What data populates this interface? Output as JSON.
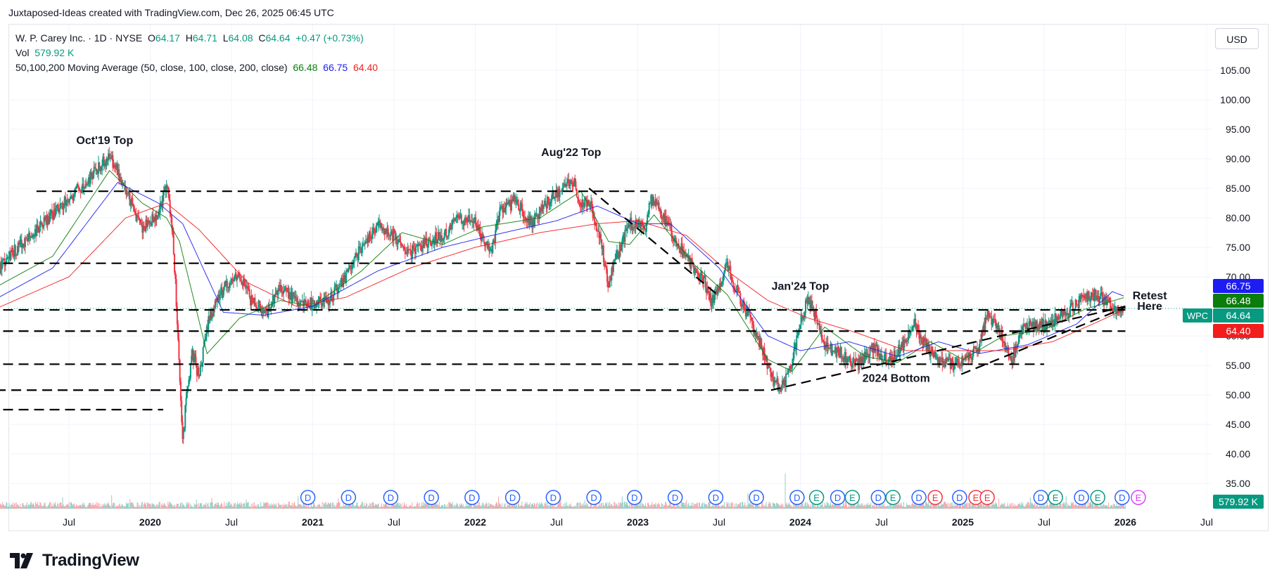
{
  "header": {
    "credit": "Juxtaposed-Ideas created with TradingView.com, Dec 26, 2025 06:45 UTC"
  },
  "legend": {
    "symbol_line": "W. P. Carey Inc. · 1D · NYSE",
    "open_label": "O",
    "open": "64.17",
    "high_label": "H",
    "high": "64.71",
    "low_label": "L",
    "low": "64.08",
    "close_label": "C",
    "close": "64.64",
    "change": "+0.47 (+0.73%)",
    "vol_label": "Vol",
    "vol": "579.92 K",
    "ma_label": "50,100,200 Moving Average (50, close, 100, close, 200, close)",
    "ma50": "66.48",
    "ma100": "66.75",
    "ma200": "64.40"
  },
  "currency": "USD",
  "logo": {
    "text": "TradingView"
  },
  "colors": {
    "up": "#089981",
    "down": "#f23645",
    "ma50": "#0b7d0b",
    "ma100": "#1d1df2",
    "ma200": "#f21d1d",
    "dividend": "#2962ff",
    "earnings_up": "#089981",
    "earnings_down": "#f23645",
    "earnings_neutral": "#e040fb"
  },
  "chart_data": {
    "type": "line",
    "symbol": "WPC",
    "interval": "1D",
    "ylim": [
      35,
      110
    ],
    "y_ticks": [
      "105.00",
      "100.00",
      "95.00",
      "90.00",
      "85.00",
      "80.00",
      "75.00",
      "70.00",
      "60.00",
      "55.00",
      "50.00",
      "45.00",
      "40.00",
      "35.00"
    ],
    "x_ticks": [
      "Jul",
      "2020",
      "Jul",
      "2021",
      "Jul",
      "2022",
      "Jul",
      "2023",
      "Jul",
      "2024",
      "Jul",
      "2025",
      "Jul",
      "2026",
      "Jul"
    ],
    "x_tick_dates": [
      2019.5,
      2020.0,
      2020.5,
      2021.0,
      2021.5,
      2022.0,
      2022.5,
      2023.0,
      2023.5,
      2024.0,
      2024.5,
      2025.0,
      2025.5,
      2026.0,
      2026.5
    ],
    "price_path": [
      [
        2019.0,
        69.0
      ],
      [
        2019.15,
        74.0
      ],
      [
        2019.3,
        78.0
      ],
      [
        2019.45,
        82.0
      ],
      [
        2019.6,
        86.0
      ],
      [
        2019.75,
        90.5
      ],
      [
        2019.83,
        86.0
      ],
      [
        2019.95,
        78.0
      ],
      [
        2020.05,
        81.0
      ],
      [
        2020.1,
        85.5
      ],
      [
        2020.14,
        77.0
      ],
      [
        2020.18,
        55.0
      ],
      [
        2020.2,
        41.0
      ],
      [
        2020.22,
        49.0
      ],
      [
        2020.26,
        57.0
      ],
      [
        2020.3,
        53.0
      ],
      [
        2020.36,
        63.0
      ],
      [
        2020.45,
        68.0
      ],
      [
        2020.55,
        70.0
      ],
      [
        2020.62,
        66.0
      ],
      [
        2020.72,
        64.0
      ],
      [
        2020.8,
        68.0
      ],
      [
        2020.9,
        66.0
      ],
      [
        2021.0,
        65.5
      ],
      [
        2021.1,
        66.0
      ],
      [
        2021.2,
        70.0
      ],
      [
        2021.3,
        75.0
      ],
      [
        2021.4,
        79.0
      ],
      [
        2021.5,
        77.0
      ],
      [
        2021.6,
        74.0
      ],
      [
        2021.7,
        76.0
      ],
      [
        2021.8,
        77.0
      ],
      [
        2021.9,
        80.0
      ],
      [
        2022.0,
        79.0
      ],
      [
        2022.05,
        76.0
      ],
      [
        2022.1,
        74.0
      ],
      [
        2022.15,
        81.0
      ],
      [
        2022.25,
        83.0
      ],
      [
        2022.35,
        79.0
      ],
      [
        2022.45,
        83.0
      ],
      [
        2022.6,
        86.5
      ],
      [
        2022.65,
        82.0
      ],
      [
        2022.7,
        83.0
      ],
      [
        2022.78,
        75.0
      ],
      [
        2022.82,
        68.0
      ],
      [
        2022.85,
        72.0
      ],
      [
        2022.95,
        79.0
      ],
      [
        2023.05,
        78.5
      ],
      [
        2023.08,
        83.0
      ],
      [
        2023.12,
        82.0
      ],
      [
        2023.2,
        78.0
      ],
      [
        2023.3,
        73.0
      ],
      [
        2023.4,
        70.0
      ],
      [
        2023.45,
        66.0
      ],
      [
        2023.5,
        68.0
      ],
      [
        2023.55,
        72.0
      ],
      [
        2023.62,
        67.0
      ],
      [
        2023.7,
        62.0
      ],
      [
        2023.78,
        57.0
      ],
      [
        2023.82,
        53.0
      ],
      [
        2023.88,
        51.0
      ],
      [
        2023.95,
        55.0
      ],
      [
        2024.0,
        63.0
      ],
      [
        2024.05,
        66.0
      ],
      [
        2024.08,
        64.5
      ],
      [
        2024.15,
        58.0
      ],
      [
        2024.25,
        57.0
      ],
      [
        2024.35,
        55.0
      ],
      [
        2024.45,
        58.0
      ],
      [
        2024.55,
        55.5
      ],
      [
        2024.62,
        58.0
      ],
      [
        2024.7,
        62.0
      ],
      [
        2024.78,
        58.0
      ],
      [
        2024.85,
        56.0
      ],
      [
        2024.95,
        55.0
      ],
      [
        2025.02,
        56.0
      ],
      [
        2025.1,
        58.0
      ],
      [
        2025.15,
        64.0
      ],
      [
        2025.22,
        61.0
      ],
      [
        2025.3,
        56.0
      ],
      [
        2025.38,
        62.0
      ],
      [
        2025.45,
        61.5
      ],
      [
        2025.55,
        62.5
      ],
      [
        2025.65,
        64.0
      ],
      [
        2025.72,
        66.0
      ],
      [
        2025.8,
        67.0
      ],
      [
        2025.88,
        66.0
      ],
      [
        2025.95,
        64.0
      ],
      [
        2025.99,
        64.64
      ]
    ],
    "series": [
      {
        "name": "MA 50",
        "values": [
          [
            2019.0,
            67.5
          ],
          [
            2019.4,
            73.5
          ],
          [
            2019.75,
            88.0
          ],
          [
            2019.95,
            82.5
          ],
          [
            2020.1,
            80.0
          ],
          [
            2020.18,
            76.0
          ],
          [
            2020.35,
            57.0
          ],
          [
            2020.55,
            63.0
          ],
          [
            2020.8,
            66.0
          ],
          [
            2021.0,
            65.0
          ],
          [
            2021.3,
            71.0
          ],
          [
            2021.55,
            77.5
          ],
          [
            2021.8,
            75.5
          ],
          [
            2022.05,
            78.5
          ],
          [
            2022.4,
            80.0
          ],
          [
            2022.65,
            84.5
          ],
          [
            2022.82,
            76.0
          ],
          [
            2022.95,
            75.5
          ],
          [
            2023.1,
            80.5
          ],
          [
            2023.35,
            72.0
          ],
          [
            2023.55,
            67.0
          ],
          [
            2023.8,
            56.0
          ],
          [
            2023.95,
            54.0
          ],
          [
            2024.15,
            61.5
          ],
          [
            2024.4,
            56.5
          ],
          [
            2024.6,
            55.5
          ],
          [
            2024.8,
            59.0
          ],
          [
            2025.0,
            56.0
          ],
          [
            2025.25,
            60.0
          ],
          [
            2025.5,
            61.0
          ],
          [
            2025.75,
            64.5
          ],
          [
            2025.99,
            66.48
          ]
        ]
      },
      {
        "name": "MA 100",
        "values": [
          [
            2019.0,
            65.5
          ],
          [
            2019.4,
            71.5
          ],
          [
            2019.8,
            86.0
          ],
          [
            2020.05,
            82.5
          ],
          [
            2020.2,
            79.0
          ],
          [
            2020.45,
            64.0
          ],
          [
            2020.7,
            63.5
          ],
          [
            2021.0,
            65.0
          ],
          [
            2021.4,
            71.0
          ],
          [
            2021.8,
            75.0
          ],
          [
            2022.1,
            77.0
          ],
          [
            2022.5,
            79.5
          ],
          [
            2022.75,
            82.0
          ],
          [
            2023.0,
            79.0
          ],
          [
            2023.2,
            79.0
          ],
          [
            2023.5,
            71.5
          ],
          [
            2023.8,
            60.0
          ],
          [
            2024.0,
            57.5
          ],
          [
            2024.3,
            59.0
          ],
          [
            2024.6,
            56.5
          ],
          [
            2024.85,
            59.0
          ],
          [
            2025.1,
            57.0
          ],
          [
            2025.4,
            58.5
          ],
          [
            2025.7,
            62.0
          ],
          [
            2025.92,
            67.5
          ],
          [
            2025.99,
            66.75
          ]
        ]
      },
      {
        "name": "MA 200",
        "values": [
          [
            2019.0,
            64.0
          ],
          [
            2019.5,
            70.0
          ],
          [
            2019.85,
            80.0
          ],
          [
            2020.1,
            82.5
          ],
          [
            2020.3,
            78.0
          ],
          [
            2020.6,
            69.0
          ],
          [
            2020.9,
            65.0
          ],
          [
            2021.2,
            66.5
          ],
          [
            2021.6,
            71.5
          ],
          [
            2022.0,
            75.0
          ],
          [
            2022.4,
            77.5
          ],
          [
            2022.75,
            79.0
          ],
          [
            2023.0,
            79.5
          ],
          [
            2023.3,
            77.0
          ],
          [
            2023.55,
            71.0
          ],
          [
            2023.8,
            66.0
          ],
          [
            2024.05,
            63.0
          ],
          [
            2024.35,
            60.5
          ],
          [
            2024.65,
            57.5
          ],
          [
            2024.95,
            57.5
          ],
          [
            2025.25,
            57.5
          ],
          [
            2025.55,
            59.0
          ],
          [
            2025.8,
            62.0
          ],
          [
            2025.99,
            64.4
          ]
        ]
      }
    ],
    "annotations": [
      {
        "text": "Oct'19 Top",
        "x": 2019.72,
        "y": 92.5
      },
      {
        "text": "Aug'22 Top",
        "x": 2022.59,
        "y": 90.5
      },
      {
        "text": "Jan'24 Top",
        "x": 2024.0,
        "y": 67.8
      },
      {
        "text": "2024 Bottom",
        "x": 2024.59,
        "y": 52.2
      },
      {
        "text": "Retest",
        "x": 2026.15,
        "y": 66.2
      },
      {
        "text": "Here",
        "x": 2026.15,
        "y": 64.4
      }
    ],
    "horizontal_levels": [
      {
        "y": 84.5,
        "x0": 2019.3,
        "x1": 2023.06
      },
      {
        "y": 72.3,
        "x0": 2019.0,
        "x1": 2023.5
      },
      {
        "y": 64.4,
        "x0": 2019.0,
        "x1": 2026.0
      },
      {
        "y": 60.8,
        "x0": 2019.0,
        "x1": 2026.0
      },
      {
        "y": 55.2,
        "x0": 2019.0,
        "x1": 2025.5
      },
      {
        "y": 50.8,
        "x0": 2019.05,
        "x1": 2023.8
      },
      {
        "y": 47.5,
        "x0": 2019.0,
        "x1": 2020.08
      }
    ],
    "trendlines": [
      {
        "from": [
          2023.82,
          50.8
        ],
        "to": [
          2026.0,
          65.0
        ]
      },
      {
        "from": [
          2024.99,
          53.5
        ],
        "to": [
          2026.0,
          64.8
        ]
      },
      {
        "from": [
          2022.7,
          85.0
        ],
        "to": [
          2023.48,
          67.2
        ]
      }
    ],
    "price_labels": [
      {
        "label": "66.75",
        "value": 66.75,
        "color": "#1d1df2"
      },
      {
        "label": "66.48",
        "value": 66.48,
        "color": "#0b7d0b"
      },
      {
        "label": "WPC",
        "value": 64.64,
        "color": "#089981",
        "tag": true
      },
      {
        "label": "64.64",
        "value": 64.64,
        "color": "#089981"
      },
      {
        "label": "64.40",
        "value": 64.4,
        "color": "#f21d1d"
      },
      {
        "label": "579.92 K",
        "value": 34.5,
        "color": "#089981"
      }
    ],
    "events": [
      {
        "t": "D",
        "x": 2020.97
      },
      {
        "t": "D",
        "x": 2021.22
      },
      {
        "t": "D",
        "x": 2021.48
      },
      {
        "t": "D",
        "x": 2021.73
      },
      {
        "t": "D",
        "x": 2021.98
      },
      {
        "t": "D",
        "x": 2022.23
      },
      {
        "t": "D",
        "x": 2022.48
      },
      {
        "t": "D",
        "x": 2022.73
      },
      {
        "t": "D",
        "x": 2022.98
      },
      {
        "t": "D",
        "x": 2023.23
      },
      {
        "t": "D",
        "x": 2023.48
      },
      {
        "t": "D",
        "x": 2023.73
      },
      {
        "t": "D",
        "x": 2023.98
      },
      {
        "t": "E",
        "x": 2024.1
      },
      {
        "t": "D",
        "x": 2024.23
      },
      {
        "t": "E",
        "x": 2024.32
      },
      {
        "t": "D",
        "x": 2024.48
      },
      {
        "t": "E",
        "x": 2024.57
      },
      {
        "t": "D",
        "x": 2024.73
      },
      {
        "t": "E",
        "x": 2024.83
      },
      {
        "t": "D",
        "x": 2024.98
      },
      {
        "t": "E",
        "x": 2025.08
      },
      {
        "t": "E",
        "x": 2025.15
      },
      {
        "t": "D",
        "x": 2025.48
      },
      {
        "t": "E",
        "x": 2025.57
      },
      {
        "t": "D",
        "x": 2025.73
      },
      {
        "t": "E",
        "x": 2025.83
      },
      {
        "t": "D",
        "x": 2025.98
      },
      {
        "t": "E",
        "x": 2026.08
      }
    ],
    "grid": true
  }
}
